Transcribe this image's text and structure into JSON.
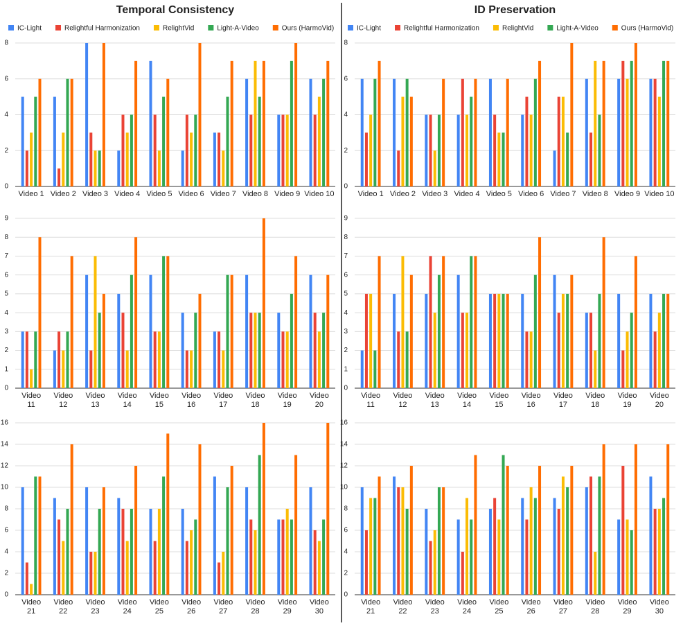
{
  "chart_data": [
    {
      "type": "bar",
      "title": "Temporal Consistency",
      "legend": "top",
      "grid": true,
      "categories": [
        "Video 1",
        "Video 2",
        "Video 3",
        "Video 4",
        "Video 5",
        "Video 6",
        "Video 7",
        "Video 8",
        "Video 9",
        "Video 10"
      ],
      "series": [
        {
          "name": "IC-Light",
          "color": "#4285f4",
          "values": [
            5,
            5,
            8,
            2,
            7,
            2,
            3,
            6,
            4,
            6
          ]
        },
        {
          "name": "Relightful Harmonization",
          "color": "#ea4335",
          "values": [
            2,
            1,
            3,
            4,
            4,
            4,
            3,
            4,
            4,
            4
          ]
        },
        {
          "name": "RelightVid",
          "color": "#fbbc04",
          "values": [
            3,
            3,
            2,
            3,
            2,
            3,
            2,
            7,
            4,
            5
          ]
        },
        {
          "name": "Light-A-Video",
          "color": "#34a853",
          "values": [
            5,
            6,
            2,
            4,
            5,
            4,
            5,
            5,
            7,
            6
          ]
        },
        {
          "name": "Ours (HarmoVid)",
          "color": "#ff6d01",
          "values": [
            6,
            6,
            8,
            7,
            6,
            8,
            7,
            7,
            8,
            7
          ]
        }
      ],
      "ylim": [
        0,
        8
      ],
      "yticks": [
        0,
        2,
        4,
        6,
        8
      ]
    },
    {
      "type": "bar",
      "title": "ID Preservation",
      "legend": "top",
      "grid": true,
      "categories": [
        "Video 1",
        "Video 2",
        "Video 3",
        "Video 4",
        "Video 5",
        "Video 6",
        "Video 7",
        "Video 8",
        "Video 9",
        "Video 10"
      ],
      "series": [
        {
          "name": "IC-Light",
          "color": "#4285f4",
          "values": [
            6,
            6,
            4,
            4,
            6,
            4,
            2,
            6,
            6,
            6
          ]
        },
        {
          "name": "Relightful Harmonization",
          "color": "#ea4335",
          "values": [
            3,
            2,
            4,
            6,
            4,
            5,
            5,
            3,
            7,
            6
          ]
        },
        {
          "name": "RelightVid",
          "color": "#fbbc04",
          "values": [
            4,
            5,
            2,
            4,
            3,
            4,
            5,
            7,
            6,
            5
          ]
        },
        {
          "name": "Light-A-Video",
          "color": "#34a853",
          "values": [
            6,
            6,
            4,
            5,
            3,
            6,
            3,
            4,
            7,
            7
          ]
        },
        {
          "name": "Ours (HarmoVid)",
          "color": "#ff6d01",
          "values": [
            7,
            5,
            6,
            6,
            6,
            7,
            8,
            7,
            8,
            7
          ]
        }
      ],
      "ylim": [
        0,
        8
      ],
      "yticks": [
        0,
        2,
        4,
        6,
        8
      ]
    },
    {
      "type": "bar",
      "grid": true,
      "categories": [
        "Video 11",
        "Video 12",
        "Video 13",
        "Video 14",
        "Video 15",
        "Video 16",
        "Video 17",
        "Video 18",
        "Video 19",
        "Video 20"
      ],
      "series": [
        {
          "name": "IC-Light",
          "color": "#4285f4",
          "values": [
            3,
            2,
            6,
            5,
            6,
            4,
            3,
            6,
            4,
            6
          ]
        },
        {
          "name": "Relightful Harmonization",
          "color": "#ea4335",
          "values": [
            3,
            3,
            2,
            4,
            3,
            2,
            3,
            4,
            3,
            4
          ]
        },
        {
          "name": "RelightVid",
          "color": "#fbbc04",
          "values": [
            1,
            2,
            7,
            2,
            3,
            2,
            2,
            4,
            3,
            3
          ]
        },
        {
          "name": "Light-A-Video",
          "color": "#34a853",
          "values": [
            3,
            3,
            4,
            6,
            7,
            4,
            6,
            4,
            5,
            4
          ]
        },
        {
          "name": "Ours (HarmoVid)",
          "color": "#ff6d01",
          "values": [
            8,
            7,
            5,
            8,
            7,
            5,
            6,
            9,
            7,
            6
          ]
        }
      ],
      "ylim": [
        0,
        9
      ],
      "yticks": [
        0,
        1,
        2,
        3,
        4,
        5,
        6,
        7,
        8,
        9
      ]
    },
    {
      "type": "bar",
      "grid": true,
      "categories": [
        "Video 11",
        "Video 12",
        "Video 13",
        "Video 14",
        "Video 15",
        "Video 16",
        "Video 17",
        "Video 18",
        "Video 19",
        "Video 20"
      ],
      "series": [
        {
          "name": "IC-Light",
          "color": "#4285f4",
          "values": [
            2,
            5,
            5,
            6,
            5,
            5,
            6,
            4,
            5,
            5
          ]
        },
        {
          "name": "Relightful Harmonization",
          "color": "#ea4335",
          "values": [
            5,
            3,
            7,
            4,
            5,
            3,
            4,
            4,
            2,
            3
          ]
        },
        {
          "name": "RelightVid",
          "color": "#fbbc04",
          "values": [
            5,
            7,
            4,
            4,
            5,
            3,
            5,
            2,
            3,
            4
          ]
        },
        {
          "name": "Light-A-Video",
          "color": "#34a853",
          "values": [
            2,
            3,
            6,
            7,
            5,
            6,
            5,
            5,
            4,
            5
          ]
        },
        {
          "name": "Ours (HarmoVid)",
          "color": "#ff6d01",
          "values": [
            7,
            6,
            7,
            7,
            5,
            8,
            6,
            8,
            7,
            5
          ]
        }
      ],
      "ylim": [
        0,
        9
      ],
      "yticks": [
        0,
        1,
        2,
        3,
        4,
        5,
        6,
        7,
        8,
        9
      ]
    },
    {
      "type": "bar",
      "grid": true,
      "categories": [
        "Video 21",
        "Video 22",
        "Video 23",
        "Video 24",
        "Video 25",
        "Video 26",
        "Video 27",
        "Video 28",
        "Video 29",
        "Video 30"
      ],
      "series": [
        {
          "name": "IC-Light",
          "color": "#4285f4",
          "values": [
            10,
            9,
            10,
            9,
            8,
            8,
            11,
            10,
            7,
            10
          ]
        },
        {
          "name": "Relightful Harmonization",
          "color": "#ea4335",
          "values": [
            3,
            7,
            4,
            8,
            5,
            5,
            3,
            7,
            7,
            6
          ]
        },
        {
          "name": "RelightVid",
          "color": "#fbbc04",
          "values": [
            1,
            5,
            4,
            5,
            8,
            6,
            4,
            6,
            8,
            5
          ]
        },
        {
          "name": "Light-A-Video",
          "color": "#34a853",
          "values": [
            11,
            8,
            8,
            8,
            11,
            7,
            10,
            13,
            7,
            7
          ]
        },
        {
          "name": "Ours (HarmoVid)",
          "color": "#ff6d01",
          "values": [
            11,
            14,
            10,
            12,
            15,
            14,
            12,
            16,
            13,
            16
          ]
        }
      ],
      "ylim": [
        0,
        16
      ],
      "yticks": [
        0,
        2,
        4,
        6,
        8,
        10,
        12,
        14,
        16
      ]
    },
    {
      "type": "bar",
      "grid": true,
      "categories": [
        "Video 21",
        "Video 22",
        "Video 23",
        "Video 24",
        "Video 25",
        "Video 26",
        "Video 27",
        "Video 28",
        "Video 29",
        "Video 30"
      ],
      "series": [
        {
          "name": "IC-Light",
          "color": "#4285f4",
          "values": [
            10,
            11,
            8,
            7,
            8,
            9,
            9,
            10,
            7,
            11
          ]
        },
        {
          "name": "Relightful Harmonization",
          "color": "#ea4335",
          "values": [
            6,
            10,
            5,
            4,
            9,
            7,
            8,
            11,
            12,
            8
          ]
        },
        {
          "name": "RelightVid",
          "color": "#fbbc04",
          "values": [
            9,
            10,
            6,
            9,
            7,
            10,
            11,
            4,
            7,
            8
          ]
        },
        {
          "name": "Light-A-Video",
          "color": "#34a853",
          "values": [
            9,
            8,
            10,
            7,
            13,
            9,
            10,
            11,
            6,
            9
          ]
        },
        {
          "name": "Ours (HarmoVid)",
          "color": "#ff6d01",
          "values": [
            11,
            12,
            10,
            13,
            12,
            12,
            12,
            14,
            14,
            14
          ]
        }
      ],
      "ylim": [
        0,
        16
      ],
      "yticks": [
        0,
        2,
        4,
        6,
        8,
        10,
        12,
        14,
        16
      ]
    }
  ]
}
